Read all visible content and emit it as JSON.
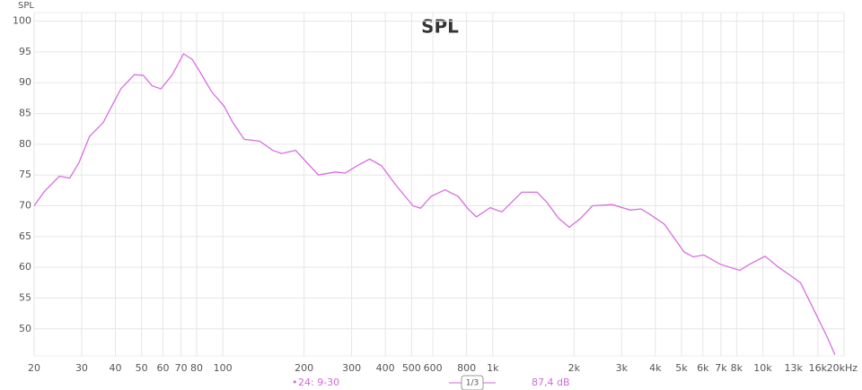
{
  "chart_data": {
    "type": "line",
    "title": "SPL",
    "y_label": "SPL",
    "xscale": "log",
    "grid": true,
    "xlim": [
      20,
      20000
    ],
    "ylim": [
      45.6,
      101.4
    ],
    "xticks": [
      20,
      30,
      40,
      50,
      60,
      70,
      80,
      100,
      200,
      300,
      400,
      500,
      600,
      800,
      {
        "value": 1000,
        "label": "1k"
      },
      {
        "value": 2000,
        "label": "2k"
      },
      {
        "value": 3000,
        "label": "3k"
      },
      {
        "value": 4000,
        "label": "4k"
      },
      {
        "value": 5000,
        "label": "5k"
      },
      {
        "value": 6000,
        "label": "6k"
      },
      {
        "value": 7000,
        "label": "7k"
      },
      {
        "value": 8000,
        "label": "8k"
      },
      {
        "value": 10000,
        "label": "10k"
      },
      {
        "value": 13000,
        "label": "13k"
      },
      {
        "value": 16000,
        "label": "16k"
      },
      {
        "value": 20000,
        "label": "20kHz"
      }
    ],
    "yticks": [
      50,
      55,
      60,
      65,
      70,
      75,
      80,
      85,
      90,
      95,
      100
    ],
    "x": [
      20,
      21.8,
      24.8,
      27.1,
      29.3,
      32.1,
      36,
      41.9,
      47,
      50.7,
      54.7,
      59,
      65,
      71.5,
      77,
      83,
      91,
      101,
      109,
      120,
      137,
      153,
      165,
      186,
      205,
      226,
      262,
      284,
      314,
      350,
      387,
      435,
      506,
      540,
      590,
      665,
      745,
      810,
      870,
      978,
      1080,
      1280,
      1460,
      1590,
      1750,
      1920,
      2120,
      2340,
      2770,
      3230,
      3540,
      3910,
      4320,
      5110,
      5520,
      6050,
      6950,
      8220,
      8950,
      10200,
      11450,
      12350,
      13800,
      15500,
      17400,
      18500
    ],
    "series": [
      {
        "name": "24: 9-30",
        "color": "#d86ee0",
        "values": [
          70,
          72.3,
          74.8,
          74.5,
          77,
          81.3,
          83.5,
          89,
          91.3,
          91.2,
          89.5,
          89,
          91.3,
          94.7,
          93.8,
          91.5,
          88.5,
          86.2,
          83.5,
          80.8,
          80.5,
          79,
          78.5,
          79,
          77,
          75,
          75.5,
          75.3,
          76.5,
          77.6,
          76.5,
          73.5,
          70,
          69.6,
          71.5,
          72.6,
          71.5,
          69.5,
          68.2,
          69.7,
          69,
          72.2,
          72.2,
          70.5,
          68,
          66.5,
          68,
          70,
          70.2,
          69.3,
          69.5,
          68.3,
          67,
          62.5,
          61.7,
          62,
          60.5,
          59.5,
          60.5,
          61.8,
          60,
          59,
          57.5,
          53,
          48.5,
          45.8
        ]
      }
    ],
    "smoothing": "1/3",
    "level": "87,4 dB"
  }
}
